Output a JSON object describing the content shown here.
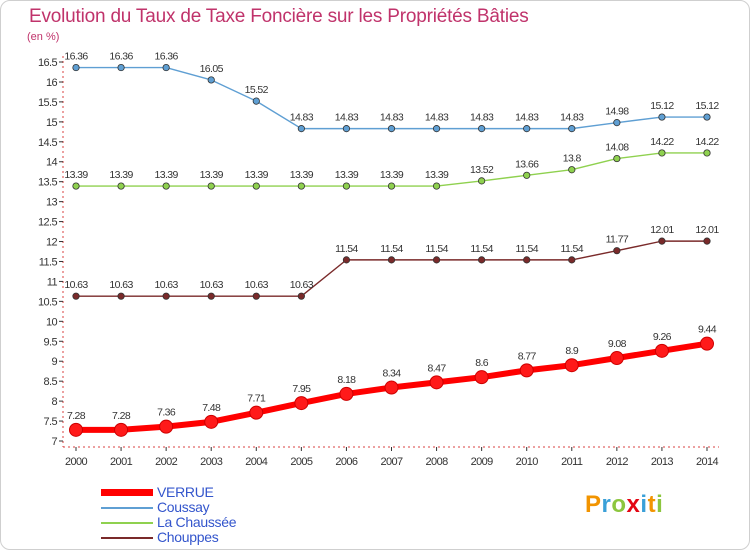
{
  "title": "Evolution du Taux de Taxe Foncière sur les Propriétés Bâties",
  "unit_label": "(en %)",
  "logo": {
    "text": "Proxiti",
    "letters": [
      {
        "ch": "P",
        "color": "#f29400"
      },
      {
        "ch": "r",
        "color": "#3aa0d8"
      },
      {
        "ch": "o",
        "color": "#8cc63f"
      },
      {
        "ch": "x",
        "color": "#e30613"
      },
      {
        "ch": "i",
        "color": "#3aa0d8"
      },
      {
        "ch": "t",
        "color": "#f29400"
      },
      {
        "ch": "i",
        "color": "#8cc63f"
      }
    ]
  },
  "chart_data": {
    "type": "line",
    "title": "Evolution du Taux de Taxe Foncière sur les Propriétés Bâties",
    "xlabel": "",
    "ylabel": "(en %)",
    "x": [
      "2000",
      "2001",
      "2002",
      "2003",
      "2004",
      "2005",
      "2006",
      "2007",
      "2008",
      "2009",
      "2010",
      "2011",
      "2012",
      "2013",
      "2014"
    ],
    "ylim": [
      7,
      16.5
    ],
    "yticks": [
      "7",
      "7.5",
      "8",
      "8.5",
      "9",
      "9.5",
      "10",
      "10.5",
      "11",
      "11.5",
      "12",
      "12.5",
      "13",
      "13.5",
      "14",
      "14.5",
      "15",
      "15.5",
      "16",
      "16.5"
    ],
    "grid": false,
    "legend": "bottom-left",
    "series": [
      {
        "name": "VERRUE",
        "color": "#ff0000",
        "values": [
          7.28,
          7.28,
          7.36,
          7.48,
          7.71,
          7.95,
          8.18,
          8.34,
          8.47,
          8.6,
          8.77,
          8.9,
          9.08,
          9.26,
          9.44
        ],
        "labels": [
          "7.28",
          "7.28",
          "7.36",
          "7.48",
          "7.71",
          "7.95",
          "8.18",
          "8.34",
          "8.47",
          "8.6",
          "8.77",
          "8.9",
          "9.08",
          "9.26",
          "9.44"
        ]
      },
      {
        "name": "Coussay",
        "color": "#5f9fd3",
        "values": [
          16.36,
          16.36,
          16.36,
          16.05,
          15.52,
          14.83,
          14.83,
          14.83,
          14.83,
          14.83,
          14.83,
          14.83,
          14.98,
          15.12,
          15.12
        ],
        "labels": [
          "16.36",
          "16.36",
          "16.36",
          "16.05",
          "15.52",
          "14.83",
          "14.83",
          "14.83",
          "14.83",
          "14.83",
          "14.83",
          "14.83",
          "14.98",
          "15.12",
          "15.12"
        ]
      },
      {
        "name": "La Chaussée",
        "color": "#8fd14f",
        "values": [
          13.39,
          13.39,
          13.39,
          13.39,
          13.39,
          13.39,
          13.39,
          13.39,
          13.39,
          13.52,
          13.66,
          13.8,
          14.08,
          14.22,
          14.22
        ],
        "labels": [
          "13.39",
          "13.39",
          "13.39",
          "13.39",
          "13.39",
          "13.39",
          "13.39",
          "13.39",
          "13.39",
          "13.52",
          "13.66",
          "13.8",
          "14.08",
          "14.22",
          "14.22"
        ]
      },
      {
        "name": "Chouppes",
        "color": "#7a2a2a",
        "values": [
          10.63,
          10.63,
          10.63,
          10.63,
          10.63,
          10.63,
          11.54,
          11.54,
          11.54,
          11.54,
          11.54,
          11.54,
          11.77,
          12.01,
          12.01
        ],
        "labels": [
          "10.63",
          "10.63",
          "10.63",
          "10.63",
          "10.63",
          "10.63",
          "11.54",
          "11.54",
          "11.54",
          "11.54",
          "11.54",
          "11.54",
          "11.77",
          "12.01",
          "12.01"
        ]
      }
    ]
  }
}
